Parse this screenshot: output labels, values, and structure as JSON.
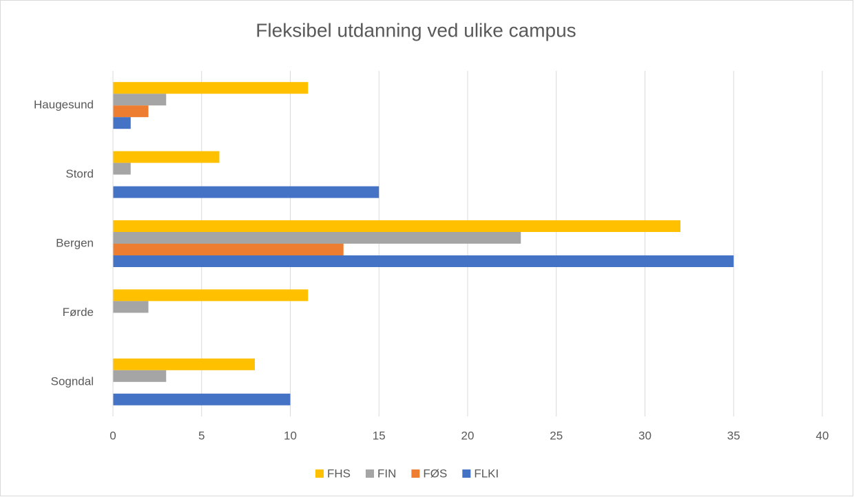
{
  "chart_data": {
    "type": "bar",
    "orientation": "horizontal",
    "title": "Fleksibel utdanning ved ulike campus",
    "categories": [
      "Haugesund",
      "Stord",
      "Bergen",
      "Førde",
      "Sogndal"
    ],
    "series": [
      {
        "name": "FHS",
        "color": "#FFC000",
        "values": [
          11,
          6,
          32,
          11,
          8
        ]
      },
      {
        "name": "FIN",
        "color": "#A5A5A5",
        "values": [
          3,
          1,
          23,
          2,
          3
        ]
      },
      {
        "name": "FØS",
        "color": "#ED7D31",
        "values": [
          2,
          0,
          13,
          0,
          0
        ]
      },
      {
        "name": "FLKI",
        "color": "#4472C4",
        "values": [
          1,
          15,
          35,
          0,
          10
        ]
      }
    ],
    "xlim": [
      0,
      40
    ],
    "xticks": [
      0,
      5,
      10,
      15,
      20,
      25,
      30,
      35,
      40
    ],
    "grid": true,
    "legend": "bottom"
  }
}
